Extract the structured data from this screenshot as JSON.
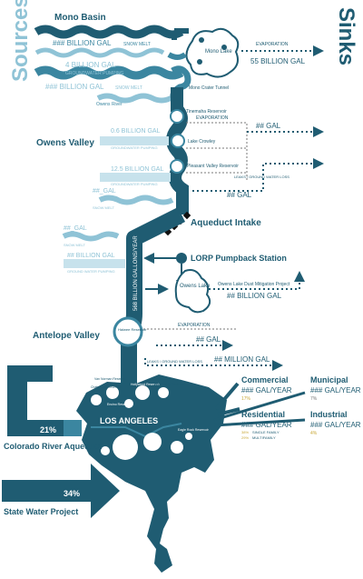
{
  "colors": {
    "dark": "#1f5c72",
    "mid": "#3b86a0",
    "light": "#8fc3d6",
    "pale": "#c7e2ec",
    "grey": "#7a7a7a",
    "gold": "#c9a83a",
    "black": "#111111"
  },
  "headers": {
    "sources": "Sources",
    "sinks": "Sinks"
  },
  "mono": {
    "region": "Mono Basin",
    "snowmelt": "### BILLION GAL",
    "snowmelt_tag": "SNOW MELT",
    "groundwater": "4 BILLION GAL",
    "groundwater_tag": "GROUNDWATER PUMPING",
    "snowmelt2": "### BILLION GAL",
    "snowmelt2_tag": "SNOW MELT",
    "lake": "Mono Lake",
    "evaporation_tag": "EVAPORATION",
    "evaporation": "55 BILLION GAL",
    "tunnel": "Mono Crater Tunnel"
  },
  "owens_valley": {
    "region": "Owens Valley",
    "river": "Owens River",
    "gw1": "0.6 BILLION GAL",
    "gw1_tag": "GROUNDWATER PUMPING",
    "gw2": "12.5 BILLION GAL",
    "gw2_tag": "GROUNDWATER PUMPING",
    "snow": "##_GAL",
    "snow_tag": "SNOW MELT",
    "tinemaha": "Tinemaha Reservoir",
    "crowley": "Lake Crowley",
    "pleasant": "Pleasant Valley Reservoir",
    "evap_tag": "EVAPORATION",
    "evap": "## GAL",
    "leaks_tag": "LEAKS / GROUND WATER LOSS",
    "leaks": "## GAL"
  },
  "intake": {
    "label": "Aqueduct Intake",
    "snow": "##_GAL",
    "snow_tag": "SNOW MELT",
    "gw": "## BILLION GAL",
    "gw_tag": "GROUND WATER PUMPING",
    "lorp": "LORP Pumpback Station",
    "owens_lake": "Owens Lake",
    "dust": "Owens Lake Dust Mitigation Project",
    "dust_value": "## BILLION GAL",
    "flow": "568 BILLION GALLONS/YEAR"
  },
  "antelope": {
    "region": "Antelope Valley",
    "haiwee": "Haiwee Reservoir",
    "evap_tag": "EVAPORATION",
    "evap": "## GAL",
    "leaks_tag": "LEAKS / GROUND WATER LOSS",
    "leaks": "## MILLION GAL"
  },
  "la": {
    "label": "LOS ANGELES",
    "colorado_pct": "21%",
    "colorado": "Colorado River Aqueduct",
    "swp_pct": "34%",
    "swp": "State Water Project",
    "res_chatsworth": "Chatsworth Reservoir",
    "res_van_norman": "Van Norman Reservoir",
    "res_encino": "Encino Reservoir",
    "res_hollywood": "Hollywood Reservoir",
    "res_silver": "Silver Lake Reservoir",
    "res_eagle": "Eagle Rock Reservoir"
  },
  "uses": {
    "commercial": "Commercial",
    "commercial_value": "### GAL/YEAR",
    "commercial_pct": "17%",
    "municipal": "Municipal",
    "municipal_value": "### GAL/YEAR",
    "municipal_pct": "7%",
    "residential": "Residential",
    "residential_value": "### GAL/YEAR",
    "residential_single": "SINGLE FAMILY",
    "residential_multi": "MULTIFAMILY",
    "residential_single_pct": "38%",
    "residential_multi_pct": "29%",
    "industrial": "Industrial",
    "industrial_value": "### GAL/YEAR",
    "industrial_pct": "4%"
  }
}
